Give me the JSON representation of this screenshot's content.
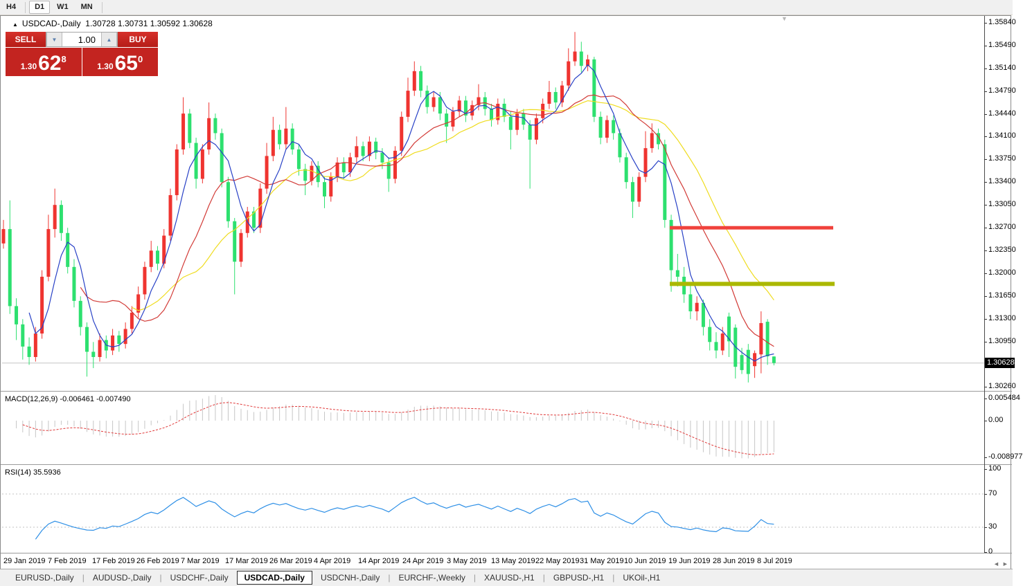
{
  "toolbar": {
    "timeframes": [
      {
        "label": "H4",
        "active": false
      },
      {
        "label": "D1",
        "active": true
      },
      {
        "label": "W1",
        "active": false
      },
      {
        "label": "MN",
        "active": false
      }
    ]
  },
  "chart": {
    "title": {
      "collapse_icon": "▲",
      "symbol": "USDCAD-,Daily",
      "ohlc": "1.30728 1.30731 1.30592 1.30628"
    },
    "trade_panel": {
      "sell_label": "SELL",
      "buy_label": "BUY",
      "volume": "1.00",
      "spin_down_icon": "▼",
      "spin_up_icon": "▲",
      "sell_price": {
        "prefix": "1.30",
        "big": "62",
        "sup": "8"
      },
      "buy_price": {
        "prefix": "1.30",
        "big": "65",
        "sup": "0"
      }
    },
    "shift_marker_icon": "▼"
  },
  "panes": {
    "macd": {
      "label": "MACD(12,26,9) -0.006461 -0.007490",
      "scale": [
        "0.005484",
        "0.00",
        "-0.008977"
      ]
    },
    "rsi": {
      "label": "RSI(14) 35.5936",
      "scale": [
        "100",
        "70",
        "30",
        "0"
      ]
    }
  },
  "price_axis": {
    "labels": [
      "1.35840",
      "1.35490",
      "1.35140",
      "1.34790",
      "1.34440",
      "1.34100",
      "1.33750",
      "1.33400",
      "1.33050",
      "1.32700",
      "1.32350",
      "1.32000",
      "1.31650",
      "1.31300",
      "1.30950",
      "1.30260"
    ],
    "current": "1.30628"
  },
  "x_axis": {
    "labels": [
      "29 Jan 2019",
      "7 Feb 2019",
      "17 Feb 2019",
      "26 Feb 2019",
      "7 Mar 2019",
      "17 Mar 2019",
      "26 Mar 2019",
      "4 Apr 2019",
      "14 Apr 2019",
      "24 Apr 2019",
      "3 May 2019",
      "13 May 2019",
      "22 May 2019",
      "31 May 2019",
      "10 Jun 2019",
      "19 Jun 2019",
      "28 Jun 2019",
      "8 Jul 2019"
    ]
  },
  "scrollbar": {
    "left_icon": "◄",
    "right_icon": "►"
  },
  "tabs": [
    {
      "label": "EURUSD-,Daily",
      "active": false
    },
    {
      "label": "AUDUSD-,Daily",
      "active": false
    },
    {
      "label": "USDCHF-,Daily",
      "active": false
    },
    {
      "label": "USDCAD-,Daily",
      "active": true
    },
    {
      "label": "USDCNH-,Daily",
      "active": false
    },
    {
      "label": "EURCHF-,Weekly",
      "active": false
    },
    {
      "label": "XAUUSD-,H1",
      "active": false
    },
    {
      "label": "GBPUSD-,H1",
      "active": false
    },
    {
      "label": "UKOil-,H1",
      "active": false
    }
  ],
  "chart_data": {
    "type": "candlestick",
    "symbol": "USDCAD",
    "timeframe": "Daily",
    "up_color": "#ef3430",
    "down_color": "#2de06f",
    "ohlc": [
      [
        1.3246,
        1.3282,
        1.3238,
        1.3268
      ],
      [
        1.3268,
        1.3312,
        1.3138,
        1.315
      ],
      [
        1.315,
        1.3162,
        1.3098,
        1.3122
      ],
      [
        1.3122,
        1.313,
        1.3068,
        1.3088
      ],
      [
        1.3088,
        1.3102,
        1.306,
        1.3072
      ],
      [
        1.3072,
        1.3118,
        1.3065,
        1.3108
      ],
      [
        1.3108,
        1.3205,
        1.31,
        1.3195
      ],
      [
        1.3195,
        1.329,
        1.3188,
        1.3268
      ],
      [
        1.3268,
        1.333,
        1.3255,
        1.3305
      ],
      [
        1.3305,
        1.3312,
        1.325,
        1.3262
      ],
      [
        1.3262,
        1.327,
        1.32,
        1.321
      ],
      [
        1.321,
        1.3222,
        1.3148,
        1.3158
      ],
      [
        1.3158,
        1.3165,
        1.3105,
        1.3118
      ],
      [
        1.3118,
        1.3125,
        1.3042,
        1.308
      ],
      [
        1.308,
        1.3095,
        1.3055,
        1.3072
      ],
      [
        1.3072,
        1.3108,
        1.3065,
        1.3098
      ],
      [
        1.3098,
        1.3105,
        1.307,
        1.3082
      ],
      [
        1.3082,
        1.3115,
        1.3075,
        1.3105
      ],
      [
        1.3105,
        1.3112,
        1.308,
        1.3092
      ],
      [
        1.3092,
        1.3125,
        1.3085,
        1.3115
      ],
      [
        1.3115,
        1.315,
        1.3108,
        1.314
      ],
      [
        1.314,
        1.318,
        1.3132,
        1.3168
      ],
      [
        1.3168,
        1.3218,
        1.316,
        1.321
      ],
      [
        1.321,
        1.325,
        1.3202,
        1.3235
      ],
      [
        1.3235,
        1.3242,
        1.3205,
        1.3215
      ],
      [
        1.3215,
        1.3268,
        1.3208,
        1.3258
      ],
      [
        1.3258,
        1.333,
        1.325,
        1.332
      ],
      [
        1.332,
        1.3398,
        1.3312,
        1.339
      ],
      [
        1.339,
        1.347,
        1.3382,
        1.3445
      ],
      [
        1.3445,
        1.3452,
        1.3392,
        1.34
      ],
      [
        1.34,
        1.3408,
        1.333,
        1.3345
      ],
      [
        1.3345,
        1.3398,
        1.3338,
        1.339
      ],
      [
        1.339,
        1.3462,
        1.3382,
        1.3438
      ],
      [
        1.3438,
        1.3445,
        1.3405,
        1.3415
      ],
      [
        1.3415,
        1.3422,
        1.3332,
        1.334
      ],
      [
        1.334,
        1.3348,
        1.327,
        1.328
      ],
      [
        1.328,
        1.3285,
        1.3168,
        1.3218
      ],
      [
        1.3218,
        1.3268,
        1.321,
        1.3262
      ],
      [
        1.3262,
        1.3302,
        1.3255,
        1.3295
      ],
      [
        1.3295,
        1.3302,
        1.3262,
        1.327
      ],
      [
        1.327,
        1.3338,
        1.3262,
        1.333
      ],
      [
        1.333,
        1.34,
        1.3322,
        1.338
      ],
      [
        1.338,
        1.344,
        1.3372,
        1.342
      ],
      [
        1.342,
        1.3428,
        1.339,
        1.3398
      ],
      [
        1.3398,
        1.3455,
        1.339,
        1.3422
      ],
      [
        1.3422,
        1.343,
        1.3382,
        1.339
      ],
      [
        1.339,
        1.3398,
        1.335,
        1.336
      ],
      [
        1.336,
        1.3368,
        1.332,
        1.3342
      ],
      [
        1.3342,
        1.3372,
        1.3335,
        1.3365
      ],
      [
        1.3365,
        1.3372,
        1.3332,
        1.334
      ],
      [
        1.334,
        1.3348,
        1.33,
        1.3318
      ],
      [
        1.3318,
        1.3355,
        1.331,
        1.3348
      ],
      [
        1.3348,
        1.3378,
        1.334,
        1.337
      ],
      [
        1.337,
        1.3378,
        1.3345,
        1.3355
      ],
      [
        1.3355,
        1.3385,
        1.3348,
        1.3378
      ],
      [
        1.3378,
        1.341,
        1.337,
        1.3395
      ],
      [
        1.3395,
        1.3402,
        1.3372,
        1.338
      ],
      [
        1.338,
        1.341,
        1.3372,
        1.3402
      ],
      [
        1.3402,
        1.3408,
        1.3375,
        1.3385
      ],
      [
        1.3385,
        1.3392,
        1.336,
        1.337
      ],
      [
        1.337,
        1.3378,
        1.3325,
        1.3345
      ],
      [
        1.3345,
        1.3395,
        1.3338,
        1.3388
      ],
      [
        1.3388,
        1.3448,
        1.338,
        1.344
      ],
      [
        1.344,
        1.35,
        1.3432,
        1.348
      ],
      [
        1.348,
        1.3525,
        1.3472,
        1.351
      ],
      [
        1.351,
        1.3518,
        1.347,
        1.348
      ],
      [
        1.348,
        1.3488,
        1.3445,
        1.3455
      ],
      [
        1.3455,
        1.3478,
        1.3448,
        1.347
      ],
      [
        1.347,
        1.3478,
        1.3435,
        1.3445
      ],
      [
        1.3445,
        1.3452,
        1.34,
        1.3425
      ],
      [
        1.3425,
        1.3455,
        1.3418,
        1.3448
      ],
      [
        1.3448,
        1.3472,
        1.344,
        1.3465
      ],
      [
        1.3465,
        1.3472,
        1.3432,
        1.3442
      ],
      [
        1.3442,
        1.3465,
        1.3435,
        1.3458
      ],
      [
        1.3458,
        1.349,
        1.345,
        1.347
      ],
      [
        1.347,
        1.3478,
        1.3442,
        1.3452
      ],
      [
        1.3452,
        1.346,
        1.3425,
        1.3435
      ],
      [
        1.3435,
        1.3468,
        1.3428,
        1.346
      ],
      [
        1.346,
        1.3468,
        1.3432,
        1.344
      ],
      [
        1.344,
        1.3448,
        1.339,
        1.342
      ],
      [
        1.342,
        1.3452,
        1.3412,
        1.3445
      ],
      [
        1.3445,
        1.3452,
        1.342,
        1.3428
      ],
      [
        1.3428,
        1.3435,
        1.333,
        1.3405
      ],
      [
        1.3405,
        1.3445,
        1.3398,
        1.3438
      ],
      [
        1.3438,
        1.3468,
        1.343,
        1.346
      ],
      [
        1.346,
        1.3495,
        1.3452,
        1.3478
      ],
      [
        1.3478,
        1.3485,
        1.3452,
        1.3462
      ],
      [
        1.3462,
        1.3495,
        1.3455,
        1.3488
      ],
      [
        1.3488,
        1.3545,
        1.348,
        1.3525
      ],
      [
        1.3525,
        1.357,
        1.3518,
        1.354
      ],
      [
        1.354,
        1.3555,
        1.3508,
        1.3518
      ],
      [
        1.3518,
        1.3535,
        1.351,
        1.3528
      ],
      [
        1.3528,
        1.3532,
        1.3432,
        1.344
      ],
      [
        1.344,
        1.3448,
        1.3398,
        1.3408
      ],
      [
        1.3408,
        1.3442,
        1.34,
        1.3435
      ],
      [
        1.3435,
        1.3442,
        1.3405,
        1.3415
      ],
      [
        1.3415,
        1.3422,
        1.337,
        1.3378
      ],
      [
        1.3378,
        1.3385,
        1.333,
        1.334
      ],
      [
        1.334,
        1.3348,
        1.3285,
        1.331
      ],
      [
        1.331,
        1.3355,
        1.3302,
        1.3348
      ],
      [
        1.3348,
        1.3418,
        1.334,
        1.3392
      ],
      [
        1.3392,
        1.343,
        1.3385,
        1.3415
      ],
      [
        1.3415,
        1.3422,
        1.339,
        1.3398
      ],
      [
        1.3398,
        1.3405,
        1.327,
        1.3282
      ],
      [
        1.3282,
        1.329,
        1.3172,
        1.3205
      ],
      [
        1.3205,
        1.323,
        1.318,
        1.3195
      ],
      [
        1.3195,
        1.321,
        1.3155,
        1.3168
      ],
      [
        1.3168,
        1.3185,
        1.313,
        1.3142
      ],
      [
        1.3142,
        1.3165,
        1.3128,
        1.3155
      ],
      [
        1.3155,
        1.316,
        1.3105,
        1.3118
      ],
      [
        1.3118,
        1.313,
        1.3082,
        1.3095
      ],
      [
        1.3095,
        1.311,
        1.307,
        1.3082
      ],
      [
        1.3082,
        1.3118,
        1.3075,
        1.3108
      ],
      [
        1.3134,
        1.314,
        1.3072,
        1.3096
      ],
      [
        1.3117,
        1.3122,
        1.3039,
        1.3057
      ],
      [
        1.3075,
        1.3086,
        1.3046,
        1.3052
      ],
      [
        1.3083,
        1.3092,
        1.3033,
        1.3046
      ],
      [
        1.3058,
        1.3082,
        1.304,
        1.3078
      ],
      [
        1.3076,
        1.3142,
        1.3047,
        1.3124
      ],
      [
        1.3126,
        1.313,
        1.306,
        1.3073
      ],
      [
        1.30728,
        1.30731,
        1.30592,
        1.30628
      ]
    ],
    "moving_averages": [
      {
        "period": 5,
        "color": "#2740c6"
      },
      {
        "period": 13,
        "color": "#d23a36"
      },
      {
        "period": 21,
        "color": "#efdc1e"
      }
    ],
    "hlines": [
      {
        "price": 1.327,
        "color": "#f0423c",
        "thickness": 5,
        "x1": 967,
        "x2": 1203
      },
      {
        "price": 1.3184,
        "color": "#abb800",
        "thickness": 6,
        "x1": 967,
        "x2": 1205
      }
    ],
    "current_price": 1.30628,
    "indicators": {
      "macd": {
        "params": [
          12,
          26,
          9
        ],
        "current_macd": -0.006461,
        "current_signal": -0.00749,
        "hist_color": "#c6c6c6",
        "signal_color": "#e03838"
      },
      "rsi": {
        "period": 14,
        "current": 35.5936,
        "color": "#2d8fe6",
        "levels": [
          70,
          30
        ]
      }
    },
    "ylim": [
      1.3026,
      1.3584
    ],
    "macd_ylim": [
      -0.008977,
      0.005484
    ],
    "rsi_ylim": [
      0,
      100
    ]
  }
}
